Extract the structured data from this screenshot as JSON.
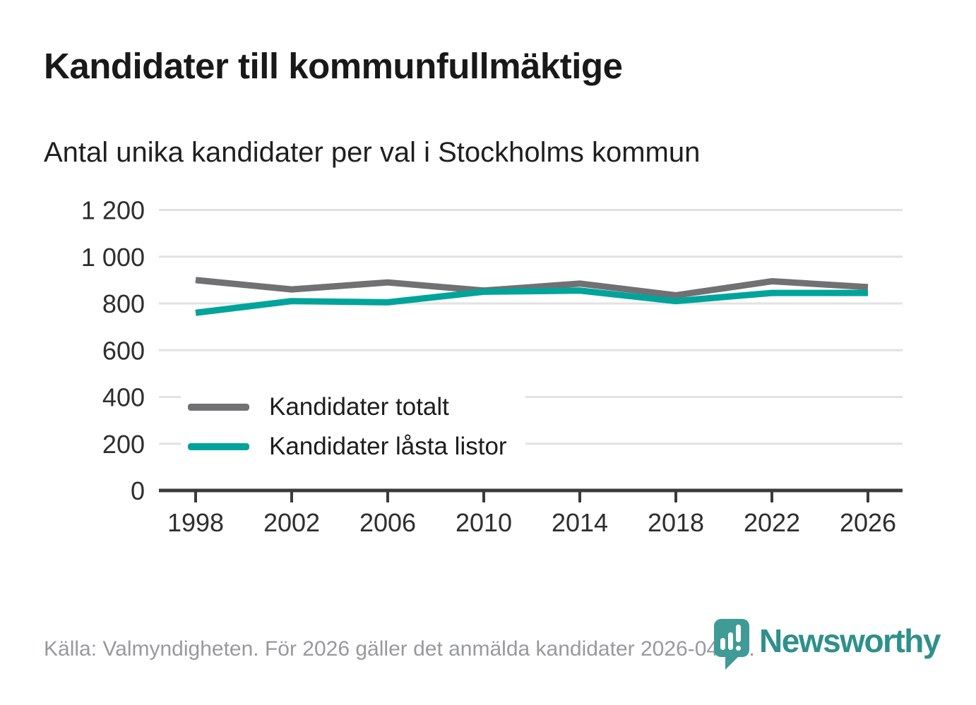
{
  "chart_data": {
    "type": "line",
    "title": "Kandidater till kommunfullmäktige",
    "subtitle": "Antal unika kandidater per val i Stockholms kommun",
    "categories": [
      "1998",
      "2002",
      "2006",
      "2010",
      "2014",
      "2018",
      "2022",
      "2026"
    ],
    "series": [
      {
        "name": "Kandidater totalt",
        "color": "#717173",
        "values": [
          900,
          860,
          890,
          855,
          885,
          835,
          895,
          870
        ]
      },
      {
        "name": "Kandidater låsta listor",
        "color": "#00a49b",
        "values": [
          760,
          810,
          805,
          850,
          855,
          810,
          845,
          845
        ]
      }
    ],
    "xlabel": "",
    "ylabel": "",
    "ylim": [
      0,
      1200
    ],
    "ytick_step": 200,
    "ytick_labels": [
      "0",
      "200",
      "400",
      "600",
      "800",
      "1 000",
      "1 200"
    ],
    "grid": true,
    "legend_position": "inside-bottom-left",
    "gridline_color": "#e2e2e2",
    "axis_color": "#3b3b3b",
    "tick_text_color": "#2e2e2e"
  },
  "footer": {
    "source_text": "Källa: Valmyndigheten. För 2026 gäller det anmälda kandidater 2026-04-10.",
    "source_color": "#97999b",
    "brand": "Newsworthy",
    "brand_color": "#2e908c",
    "brand_icon": "bar-chart-pin-icon",
    "brand_icon_color": "#3e9b96"
  }
}
